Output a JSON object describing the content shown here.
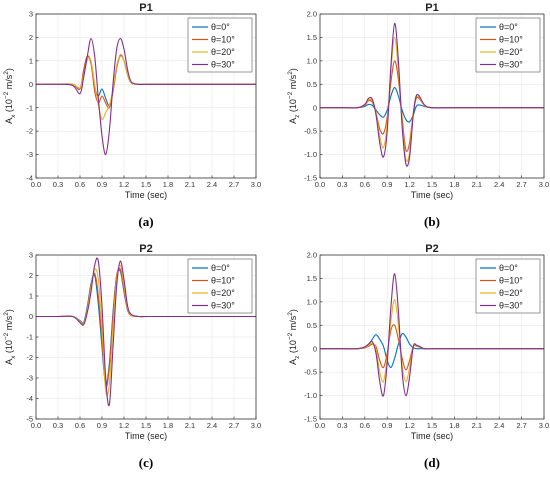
{
  "chart_data": [
    {
      "type": "line",
      "panel": "(a)",
      "title": "P1",
      "xlabel": "Time (sec)",
      "ylabel": "A_x (10^-2 m/s^2)",
      "ylabel_parts": [
        "A",
        "x",
        " (10",
        "−2",
        " m/s",
        "2",
        ")"
      ],
      "xlim": [
        0,
        3.0
      ],
      "ylim": [
        -4,
        3
      ],
      "xticks": [
        "0.0",
        "0.3",
        "0.6",
        "0.9",
        "1.2",
        "1.5",
        "1.8",
        "2.1",
        "2.4",
        "2.7",
        "3.0"
      ],
      "yticks": [
        "-4",
        "-3",
        "-2",
        "-1",
        "0",
        "1",
        "2",
        "3"
      ],
      "grid": true,
      "legend_position": "top-right",
      "x": [
        0.0,
        0.3,
        0.5,
        0.6,
        0.65,
        0.7,
        0.75,
        0.8,
        0.85,
        0.9,
        0.95,
        1.0,
        1.05,
        1.1,
        1.15,
        1.2,
        1.25,
        1.3,
        1.4,
        1.5,
        1.8,
        2.4,
        3.0
      ],
      "series": [
        {
          "name": "θ=0°",
          "color": "#0072BD",
          "values": [
            0,
            0,
            0,
            -0.2,
            0.6,
            1.2,
            0.9,
            -0.1,
            -0.5,
            -0.2,
            -0.6,
            -0.9,
            -0.3,
            0.7,
            1.2,
            1.0,
            0.4,
            0.05,
            0,
            0,
            0,
            0,
            0
          ]
        },
        {
          "name": "θ=10°",
          "color": "#D95319",
          "values": [
            0,
            0,
            0,
            -0.2,
            0.6,
            1.2,
            0.9,
            -0.3,
            -0.8,
            -0.5,
            -0.8,
            -1.0,
            -0.3,
            0.7,
            1.25,
            1.0,
            0.4,
            0.05,
            0,
            0,
            0,
            0,
            0
          ]
        },
        {
          "name": "θ=20°",
          "color": "#EDB120",
          "values": [
            0,
            0,
            0,
            -0.15,
            0.4,
            1.05,
            1.0,
            0.0,
            -0.9,
            -1.5,
            -1.2,
            -0.9,
            -0.2,
            0.8,
            1.2,
            1.0,
            0.4,
            0.05,
            0,
            0,
            0,
            0,
            0
          ]
        },
        {
          "name": "θ=30°",
          "color": "#7E2F8E",
          "values": [
            0,
            0,
            -0.05,
            -0.4,
            0.3,
            1.2,
            1.95,
            1.2,
            -0.6,
            -2.2,
            -3.0,
            -2.0,
            0.0,
            1.5,
            1.95,
            1.5,
            0.6,
            0.1,
            0,
            0,
            0,
            0,
            0
          ]
        }
      ]
    },
    {
      "type": "line",
      "panel": "(b)",
      "title": "P1",
      "xlabel": "Time (sec)",
      "ylabel": "A_z (10^-2 m/s^2)",
      "ylabel_parts": [
        "A",
        "z",
        " (10",
        "−2",
        " m/s",
        "2",
        ")"
      ],
      "xlim": [
        0,
        3.0
      ],
      "ylim": [
        -1.5,
        2.0
      ],
      "xticks": [
        "0.0",
        "0.3",
        "0.6",
        "0.9",
        "1.2",
        "1.5",
        "1.8",
        "2.1",
        "2.4",
        "2.7",
        "3.0"
      ],
      "yticks": [
        "-1.5",
        "-1.0",
        "-0.5",
        "0",
        "0.5",
        "1.0",
        "1.5",
        "2.0"
      ],
      "grid": true,
      "legend_position": "top-right",
      "x": [
        0.0,
        0.3,
        0.5,
        0.6,
        0.65,
        0.7,
        0.75,
        0.8,
        0.85,
        0.9,
        0.95,
        1.0,
        1.05,
        1.1,
        1.15,
        1.2,
        1.25,
        1.3,
        1.4,
        1.5,
        1.8,
        2.4,
        3.0
      ],
      "series": [
        {
          "name": "θ=0°",
          "color": "#0072BD",
          "values": [
            0,
            0,
            0,
            0.03,
            0.07,
            0.05,
            -0.05,
            -0.15,
            -0.2,
            -0.05,
            0.25,
            0.43,
            0.25,
            -0.05,
            -0.25,
            -0.3,
            -0.15,
            0.05,
            0.03,
            0,
            0,
            0,
            0
          ]
        },
        {
          "name": "θ=10°",
          "color": "#D95319",
          "values": [
            0,
            0,
            0,
            0.05,
            0.15,
            0.12,
            -0.1,
            -0.45,
            -0.55,
            -0.2,
            0.55,
            1.0,
            0.6,
            -0.2,
            -0.9,
            -0.75,
            -0.1,
            0.22,
            0.05,
            0,
            0,
            0,
            0
          ]
        },
        {
          "name": "θ=20°",
          "color": "#EDB120",
          "values": [
            0,
            0,
            0,
            0.06,
            0.17,
            0.15,
            -0.1,
            -0.6,
            -0.85,
            -0.35,
            0.8,
            1.5,
            0.8,
            -0.3,
            -1.1,
            -0.95,
            -0.1,
            0.25,
            0.05,
            0,
            0,
            0,
            0
          ]
        },
        {
          "name": "θ=30°",
          "color": "#7E2F8E",
          "values": [
            0,
            0,
            0,
            0.07,
            0.2,
            0.18,
            -0.15,
            -0.75,
            -1.05,
            -0.5,
            0.9,
            1.8,
            1.0,
            -0.4,
            -1.2,
            -1.05,
            -0.15,
            0.28,
            0.06,
            0,
            0,
            0,
            0
          ]
        }
      ]
    },
    {
      "type": "line",
      "panel": "(c)",
      "title": "P2",
      "xlabel": "Time (sec)",
      "ylabel": "A_x (10^-2 m/s^2)",
      "ylabel_parts": [
        "A",
        "x",
        " (10",
        "−2",
        " m/s",
        "2",
        ")"
      ],
      "xlim": [
        0,
        3.0
      ],
      "ylim": [
        -5,
        3
      ],
      "xticks": [
        "0.0",
        "0.3",
        "0.6",
        "0.9",
        "1.2",
        "1.5",
        "1.8",
        "2.1",
        "2.4",
        "2.7",
        "3.0"
      ],
      "yticks": [
        "-5",
        "-4",
        "-3",
        "-2",
        "-1",
        "0",
        "1",
        "2",
        "3"
      ],
      "grid": true,
      "legend_position": "top-right",
      "x": [
        0.0,
        0.3,
        0.5,
        0.6,
        0.65,
        0.7,
        0.75,
        0.8,
        0.85,
        0.9,
        0.95,
        1.0,
        1.05,
        1.1,
        1.15,
        1.2,
        1.25,
        1.3,
        1.4,
        1.5,
        1.8,
        2.4,
        3.0
      ],
      "series": [
        {
          "name": "θ=0°",
          "color": "#0072BD",
          "values": [
            0,
            0,
            0,
            -0.2,
            -0.3,
            0.5,
            1.6,
            2.0,
            0.6,
            -1.5,
            -3.3,
            -2.3,
            0.2,
            2.0,
            2.2,
            1.2,
            0.3,
            0.05,
            0,
            0,
            0,
            0,
            0
          ]
        },
        {
          "name": "θ=10°",
          "color": "#D95319",
          "values": [
            0,
            0,
            0,
            -0.25,
            -0.35,
            0.4,
            1.5,
            2.1,
            1.0,
            -1.2,
            -3.4,
            -2.5,
            0.0,
            2.0,
            2.3,
            1.3,
            0.35,
            0.05,
            0,
            0,
            0,
            0,
            0
          ]
        },
        {
          "name": "θ=20°",
          "color": "#EDB120",
          "values": [
            0,
            0,
            0,
            -0.25,
            -0.35,
            0.3,
            1.4,
            2.3,
            1.8,
            -0.5,
            -3.6,
            -3.3,
            -0.5,
            1.8,
            2.5,
            1.5,
            0.4,
            0.05,
            0,
            0,
            0,
            0,
            0
          ]
        },
        {
          "name": "θ=30°",
          "color": "#7E2F8E",
          "values": [
            0,
            0,
            0,
            -0.3,
            -0.4,
            0.2,
            1.2,
            2.5,
            2.7,
            0.5,
            -3.0,
            -4.3,
            -1.5,
            1.5,
            2.7,
            1.8,
            0.5,
            0.1,
            0,
            0,
            0,
            0,
            0
          ]
        }
      ]
    },
    {
      "type": "line",
      "panel": "(d)",
      "title": "P2",
      "xlabel": "Time (sec)",
      "ylabel": "A_z (10^-2 m/s^2)",
      "ylabel_parts": [
        "A",
        "z",
        " (10",
        "−2",
        " m/s",
        "2",
        ")"
      ],
      "xlim": [
        0,
        3.0
      ],
      "ylim": [
        -1.5,
        2.0
      ],
      "xticks": [
        "0.0",
        "0.3",
        "0.6",
        "0.9",
        "1.2",
        "1.5",
        "1.8",
        "2.1",
        "2.4",
        "2.7",
        "3.0"
      ],
      "yticks": [
        "-1.5",
        "-1.0",
        "-0.5",
        "0",
        "0.5",
        "1.0",
        "1.5",
        "2.0"
      ],
      "grid": true,
      "legend_position": "top-right",
      "x": [
        0.0,
        0.3,
        0.5,
        0.6,
        0.65,
        0.7,
        0.75,
        0.8,
        0.85,
        0.9,
        0.95,
        1.0,
        1.05,
        1.1,
        1.15,
        1.2,
        1.25,
        1.3,
        1.4,
        1.5,
        1.8,
        2.4,
        3.0
      ],
      "series": [
        {
          "name": "θ=0°",
          "color": "#0072BD",
          "values": [
            0,
            0,
            0,
            0.02,
            0.08,
            0.2,
            0.3,
            0.2,
            0.05,
            -0.25,
            -0.4,
            -0.2,
            0.1,
            0.32,
            0.25,
            0.1,
            0.02,
            0,
            0,
            0,
            0,
            0,
            0
          ]
        },
        {
          "name": "θ=10°",
          "color": "#D95319",
          "values": [
            0,
            0,
            0,
            0.02,
            0.05,
            0.1,
            0.05,
            -0.25,
            -0.4,
            -0.1,
            0.4,
            0.5,
            0.2,
            -0.2,
            -0.45,
            -0.25,
            0.05,
            0.05,
            0,
            0,
            0,
            0,
            0
          ]
        },
        {
          "name": "θ=20°",
          "color": "#EDB120",
          "values": [
            0,
            0,
            0,
            0.03,
            0.07,
            0.12,
            0.0,
            -0.5,
            -0.7,
            -0.2,
            0.6,
            1.05,
            0.5,
            -0.35,
            -0.7,
            -0.4,
            0.05,
            0.06,
            0,
            0,
            0,
            0,
            0
          ]
        },
        {
          "name": "θ=30°",
          "color": "#7E2F8E",
          "values": [
            0,
            0,
            0,
            0.04,
            0.1,
            0.15,
            -0.1,
            -0.7,
            -1.0,
            -0.3,
            0.9,
            1.6,
            0.8,
            -0.5,
            -1.0,
            -0.6,
            0.05,
            0.07,
            0,
            0,
            0,
            0,
            0
          ]
        }
      ]
    }
  ]
}
